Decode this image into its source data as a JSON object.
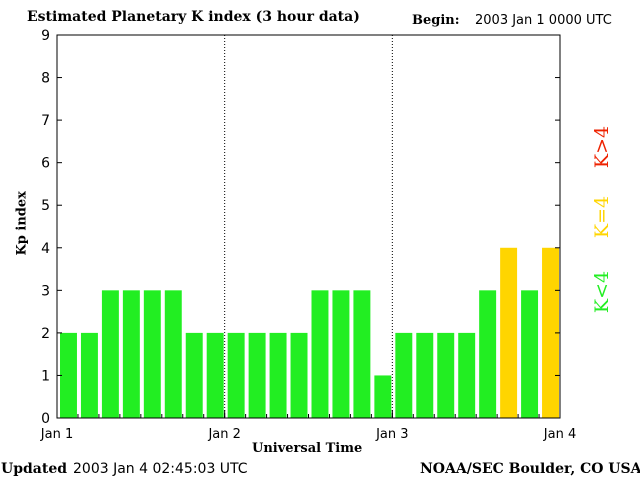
{
  "header": {
    "title": "Estimated Planetary K index (3 hour data)",
    "begin_label": "Begin:",
    "begin_value": "2003 Jan 1 0000 UTC"
  },
  "footer": {
    "updated_label": "Updated",
    "updated_value": "2003 Jan  4 02:45:03 UTC",
    "credit": "NOAA/SEC Boulder, CO USA"
  },
  "legend": {
    "items": [
      {
        "label": "K<4",
        "color": "#22ee22"
      },
      {
        "label": "K=4",
        "color": "#ffd500"
      },
      {
        "label": "K>4",
        "color": "#ee2200"
      }
    ]
  },
  "chart_data": {
    "type": "bar",
    "title": "Estimated Planetary K index (3 hour data)",
    "xlabel": "Universal Time",
    "ylabel": "Kp index",
    "ylim": [
      0,
      9
    ],
    "yticks": [
      0,
      1,
      2,
      3,
      4,
      5,
      6,
      7,
      8,
      9
    ],
    "xticks": [
      "Jan 1",
      "Jan 2",
      "Jan 3",
      "Jan 4"
    ],
    "interval_hours": 3,
    "values": [
      2,
      2,
      3,
      3,
      3,
      3,
      2,
      2,
      2,
      2,
      2,
      2,
      3,
      3,
      3,
      1,
      2,
      2,
      2,
      2,
      3,
      4,
      3,
      4
    ],
    "colors": {
      "below4": "#22ee22",
      "equal4": "#ffd500",
      "above4": "#ee2200"
    },
    "grid": "dotted day separators"
  }
}
